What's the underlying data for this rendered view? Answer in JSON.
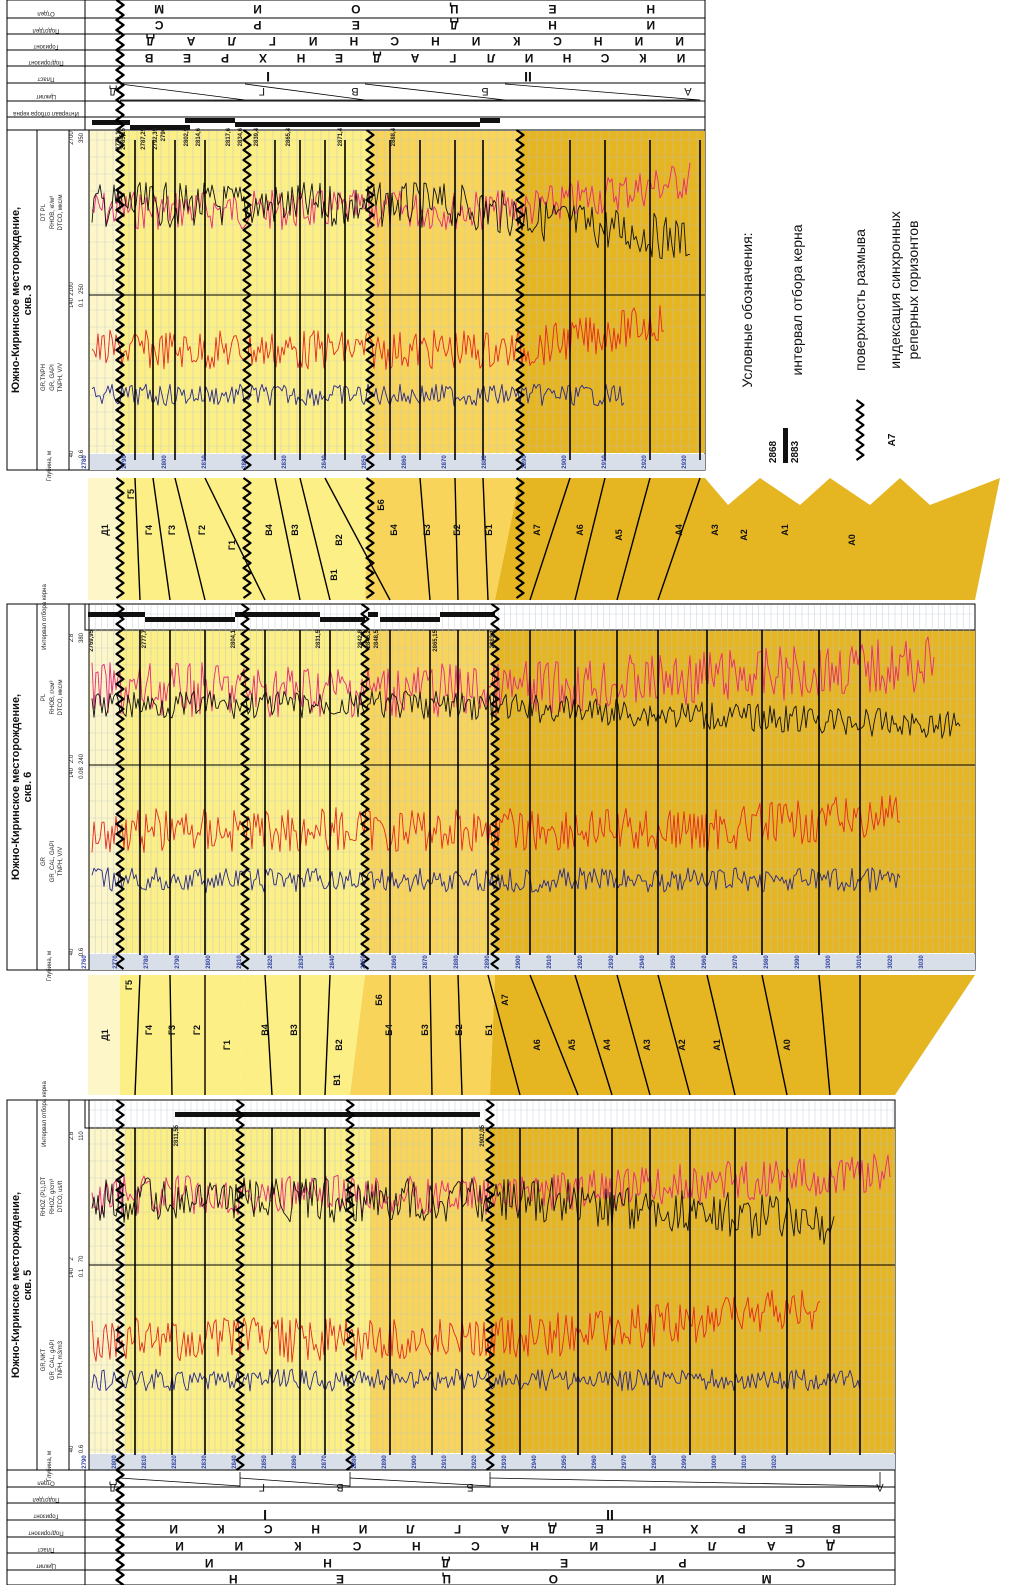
{
  "header_top": {
    "row_names": [
      "Отдел",
      "Подотдел",
      "Горизонт",
      "Подгоризонт",
      "Пласт",
      "Циклит",
      "Интервал отбора керна"
    ],
    "otdel": [
      "Н",
      "Е",
      "Ц",
      "О",
      "И",
      "М"
    ],
    "podotdel": [
      "И",
      "Н",
      "Д",
      "Е",
      "Р",
      "С"
    ],
    "gorizont": [
      "И",
      "И",
      "Н",
      "С",
      "К",
      "И",
      "Н",
      "С",
      "Н",
      "И",
      "Г",
      "Л",
      "А",
      "Д"
    ],
    "podgorizont": [
      "И",
      "К",
      "С",
      "Н",
      "И",
      "Л",
      "Г",
      "А",
      "Д",
      "Е",
      "Н",
      "Х",
      "Р",
      "Е",
      "В"
    ],
    "plast": [
      "I",
      "II"
    ],
    "tsiklit": [
      "Д",
      "Г",
      "В",
      "Б",
      "А"
    ]
  },
  "header_bottom": {
    "row_names": [
      "Отдел",
      "Подотдел",
      "Горизонт",
      "Подгоризонт",
      "Пласт",
      "Циклит"
    ],
    "otdel": [
      "Н",
      "Е",
      "Ц",
      "О",
      "И",
      "М"
    ],
    "podotdel": [
      "И",
      "Н",
      "Д",
      "Е",
      "Р",
      "С"
    ],
    "gorizont": [
      "И",
      "И",
      "К",
      "С",
      "Н",
      "С",
      "Н",
      "И",
      "Г",
      "Л",
      "А",
      "Д"
    ],
    "podgorizont": [
      "И",
      "К",
      "С",
      "Н",
      "И",
      "Л",
      "Г",
      "А",
      "Д",
      "Е",
      "Н",
      "Х",
      "Р",
      "Е",
      "В"
    ],
    "plast": [
      "I",
      "II"
    ],
    "tsiklit": [
      "Д",
      "Г",
      "В",
      "Б",
      "А"
    ]
  },
  "wells": [
    {
      "id": "well3",
      "title1": "Южно-Киринское месторождение,",
      "title2": "скв. 3",
      "track1_name": "GR,TNPH",
      "track1_curves": [
        "GR, GAPI",
        "TNPH, V/V"
      ],
      "track2_name": "DT PL",
      "track2_curves": [
        "RHOB, кг/м³",
        "DTCO, мкс/м"
      ],
      "track1_scale": [
        "40",
        "140",
        "0.6",
        "0.1"
      ],
      "track2_scale": [
        "2100",
        "2700",
        "250",
        "350"
      ],
      "depth_label": "Глубина, м",
      "depths": [
        "2780",
        "2790",
        "2800",
        "2810",
        "2820",
        "2830",
        "2840",
        "2850",
        "2860",
        "2870",
        "2880",
        "2890",
        "2900",
        "2910",
        "2920",
        "2930",
        "2940",
        "2950",
        "2960"
      ],
      "core_label": "Интервал отбора керна",
      "core_marks": [
        "2776,15",
        "2785,15",
        "2787,25",
        "2792,35",
        "2796",
        "2802,5",
        "2814,6",
        "2817,6",
        "2834,6",
        "2839,4",
        "2865,4",
        "2871,4",
        "2888,4"
      ]
    },
    {
      "id": "well6",
      "title1": "Южно-Киринское месторождение,",
      "title2": "скв. 6",
      "track1_name": "GR",
      "track1_curves": [
        "GR_CAL, GAPI",
        "TNPH, V/V"
      ],
      "track2_name": "PL",
      "track2_curves": [
        "RHOB, г/см³",
        "DTCO, мкс/м"
      ],
      "track1_scale": [
        "40",
        "140",
        "0.6",
        "0.08"
      ],
      "track2_scale": [
        "2.0",
        "2.8",
        "240",
        "380"
      ],
      "depth_label": "Глубина, м",
      "depths": [
        "2760",
        "2770",
        "2780",
        "2790",
        "2800",
        "2810",
        "2820",
        "2830",
        "2840",
        "2850",
        "2860",
        "2870",
        "2880",
        "2890",
        "2900",
        "2910",
        "2920",
        "2930",
        "2940",
        "2950",
        "2960",
        "2970",
        "2980",
        "2990",
        "3000",
        "3010",
        "3020",
        "3030"
      ],
      "core_label": "Интервал отбора керна",
      "core_marks": [
        "2769,95",
        "2777,7",
        "2804,1",
        "2831,5",
        "2842,8",
        "2845,2",
        "2848,5",
        "2865,15",
        "2883,1"
      ]
    },
    {
      "id": "well5",
      "title1": "Южно-Киринское месторождение,",
      "title2": "скв. 5",
      "track1_name": "GR,NKT",
      "track1_curves": [
        "GR_CAL, gAPI",
        "TNPH, m3/m3"
      ],
      "track2_name": "RHOZ (PL),DT",
      "track2_curves": [
        "RHOZ, g/cm³",
        "DTCO, us/ft"
      ],
      "track1_scale": [
        "40",
        "140",
        "0.6",
        "0.1"
      ],
      "track2_scale": [
        "2",
        "2.8",
        "70",
        "110"
      ],
      "depth_label": "Глубина, м",
      "depths": [
        "2790",
        "2800",
        "2810",
        "2820",
        "2830",
        "2840",
        "2850",
        "2860",
        "2870",
        "2880",
        "2890",
        "2900",
        "2910",
        "2920",
        "2930",
        "2940",
        "2950",
        "2960",
        "2970",
        "2980",
        "2990",
        "3000",
        "3010",
        "3020"
      ],
      "core_label": "Интервал отбора керна",
      "core_marks": [
        "2811,55",
        "2902,05"
      ]
    }
  ],
  "corr_zone_1": [
    "Д1",
    "Г5",
    "Г4",
    "Г3",
    "Г2",
    "Г1",
    "В4",
    "В3",
    "В2",
    "В1",
    "Б6",
    "Б4",
    "Б3",
    "Б2",
    "Б1",
    "А7",
    "А6",
    "А5",
    "А4",
    "А3",
    "А2",
    "А1",
    "А0"
  ],
  "corr_zone_2": [
    "Д1",
    "Г5",
    "Г4",
    "Г3",
    "Г2",
    "Г1",
    "В4",
    "В3",
    "В2",
    "В1",
    "Б6",
    "Б4",
    "Б3",
    "Б2",
    "Б1",
    "А7",
    "А6",
    "А5",
    "А4",
    "А3",
    "А2",
    "А1",
    "А0"
  ],
  "legend": {
    "title": "Условные обозначения:",
    "core_top": "2868",
    "core_bottom": "2883",
    "core_text": "интервал отбора керна",
    "erosion_text": "поверхность размыва",
    "horizon_code": "А7",
    "horizon_text_1": "индексация синхронных",
    "horizon_text_2": "реперных горизонтов"
  },
  "colors": {
    "zone_d": "#fdf6c8",
    "zone_g": "#fcef86",
    "zone_v": "#fbe77a",
    "zone_b": "#f8d55a",
    "zone_a": "#e6b522",
    "gr": "#e8261d",
    "tnph": "#28288c",
    "rhob": "#e8267a",
    "dtco": "#111111",
    "grid": "#b9c3cf"
  }
}
